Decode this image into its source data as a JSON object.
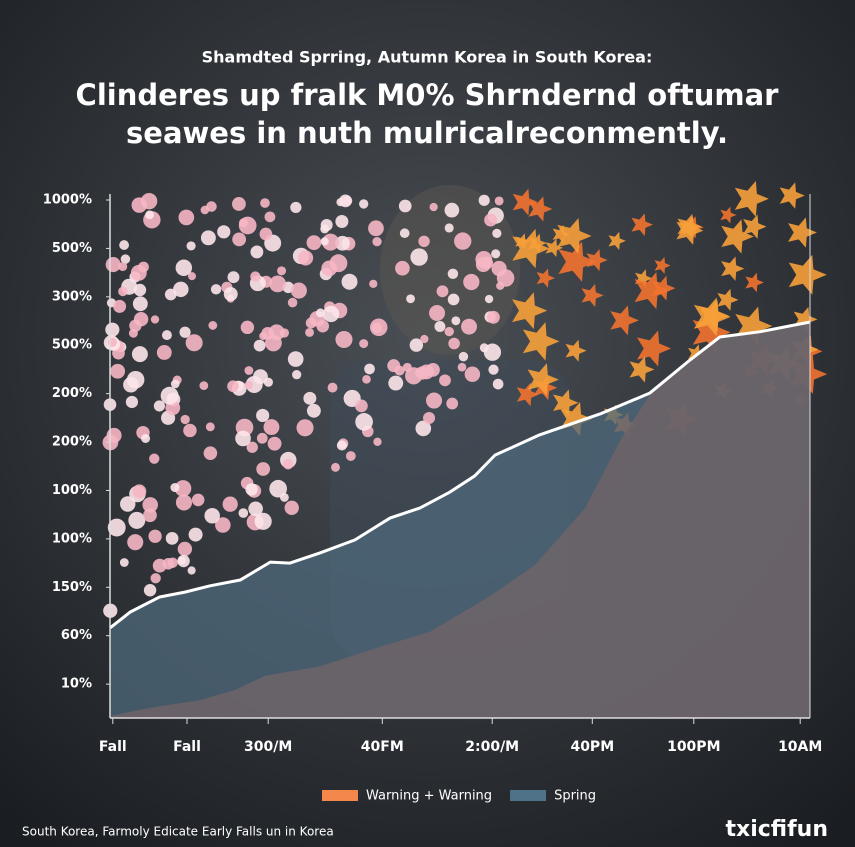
{
  "chart_data": {
    "type": "area",
    "subtitle": "Shamdted Sprring, Autumn Korea in South Korea:",
    "title": [
      "Clinderes up fralk M0% Shrndernd oftumar",
      "seawes in nuth mulricalreconmently."
    ],
    "xlim": [
      0,
      100
    ],
    "xticks": [
      {
        "value": 0.4,
        "label": "Fall"
      },
      {
        "value": 11,
        "label": "Fall"
      },
      {
        "value": 22.6,
        "label": "300/M"
      },
      {
        "value": 38.9,
        "label": "40FM"
      },
      {
        "value": 54.6,
        "label": "2:00/M"
      },
      {
        "value": 68.9,
        "label": "40PM"
      },
      {
        "value": 83.4,
        "label": "100PM"
      },
      {
        "value": 98.6,
        "label": "10AM"
      }
    ],
    "ylim": [
      0.3,
      11
    ],
    "yticks": [
      {
        "value": 1,
        "label": "10%"
      },
      {
        "value": 2,
        "label": "60%"
      },
      {
        "value": 3,
        "label": "150%"
      },
      {
        "value": 4,
        "label": "100%"
      },
      {
        "value": 5,
        "label": "100%"
      },
      {
        "value": 6,
        "label": "200%"
      },
      {
        "value": 7,
        "label": "200%"
      },
      {
        "value": 8,
        "label": "500%"
      },
      {
        "value": 9,
        "label": "300%"
      },
      {
        "value": 10,
        "label": "500%"
      },
      {
        "value": 11,
        "label": "1000%"
      }
    ],
    "series": [
      {
        "color": "#4f6a7c",
        "line_color": "#ffffff",
        "x": [
          0,
          2.9,
          7.1,
          10.7,
          14.3,
          18.6,
          22.9,
          25.7,
          30,
          35,
          40,
          44.3,
          48.6,
          52.1,
          55,
          61.4,
          70,
          77.1,
          82.9,
          87.1,
          92.9,
          100
        ],
        "values": [
          2.16,
          2.49,
          2.8,
          2.9,
          3.03,
          3.15,
          3.52,
          3.5,
          3.71,
          3.98,
          4.43,
          4.64,
          4.97,
          5.3,
          5.73,
          6.15,
          6.58,
          7.01,
          7.7,
          8.17,
          8.28,
          8.48
        ]
      },
      {
        "color": "#6e6468",
        "x": [
          0,
          5.7,
          12.9,
          17.9,
          22.1,
          30,
          38.6,
          45.7,
          54.3,
          60.7,
          67.9,
          72.9,
          77.1,
          82.9,
          87.1,
          92.9,
          100
        ],
        "values": [
          0.34,
          0.51,
          0.67,
          0.88,
          1.17,
          1.37,
          1.77,
          2.08,
          2.82,
          3.46,
          4.64,
          6.04,
          6.97,
          7.7,
          8.17,
          8.28,
          8.48
        ]
      }
    ],
    "legend": [
      {
        "name": "Warning + Warning",
        "color": "#f4874b"
      },
      {
        "name": "Spring",
        "color": "#4f7288"
      }
    ],
    "footer": "South Korea, Farmoly Edicate Early Falls un in Korea",
    "brand": "txicfifun"
  }
}
